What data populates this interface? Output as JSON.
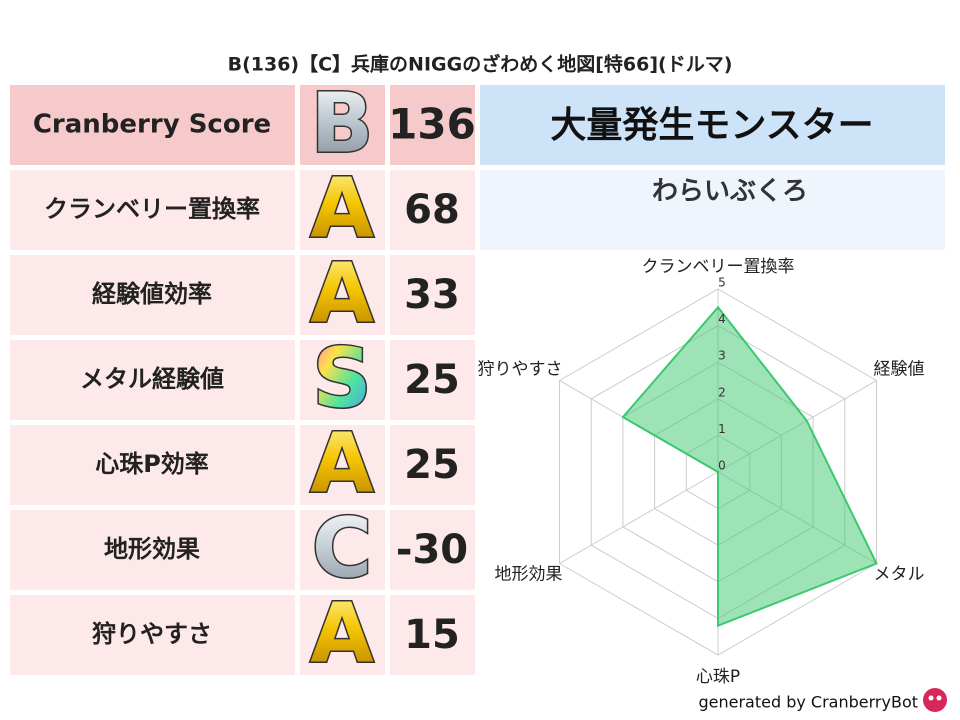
{
  "title": "B(136)【C】兵庫のNIGGのざわめく地図[特66](ドルマ)",
  "table": {
    "header": {
      "label": "Cranberry Score",
      "grade": "B",
      "score": 136
    },
    "rows": [
      {
        "label": "クランベリー置換率",
        "grade": "A",
        "score": 68
      },
      {
        "label": "経験値効率",
        "grade": "A",
        "score": 33
      },
      {
        "label": "メタル経験値",
        "grade": "S",
        "score": 25
      },
      {
        "label": "心珠P効率",
        "grade": "A",
        "score": 25
      },
      {
        "label": "地形効果",
        "grade": "C",
        "score": -30
      },
      {
        "label": "狩りやすさ",
        "grade": "A",
        "score": 15
      }
    ]
  },
  "monster": {
    "heading": "大量発生モンスター",
    "name": "わらいぶくろ"
  },
  "chart_data": {
    "type": "radar",
    "categories": [
      "クランベリー置換率",
      "経験値",
      "メタル",
      "心珠P",
      "地形効果",
      "狩りやすさ"
    ],
    "values": [
      4.5,
      2.8,
      5,
      4.2,
      0,
      3
    ],
    "color": "#3cc86e",
    "ylim": [
      0,
      5
    ],
    "yticks": [
      0,
      1,
      2,
      3,
      4,
      5
    ],
    "grid": true
  },
  "footer": "generated by CranberryBot"
}
